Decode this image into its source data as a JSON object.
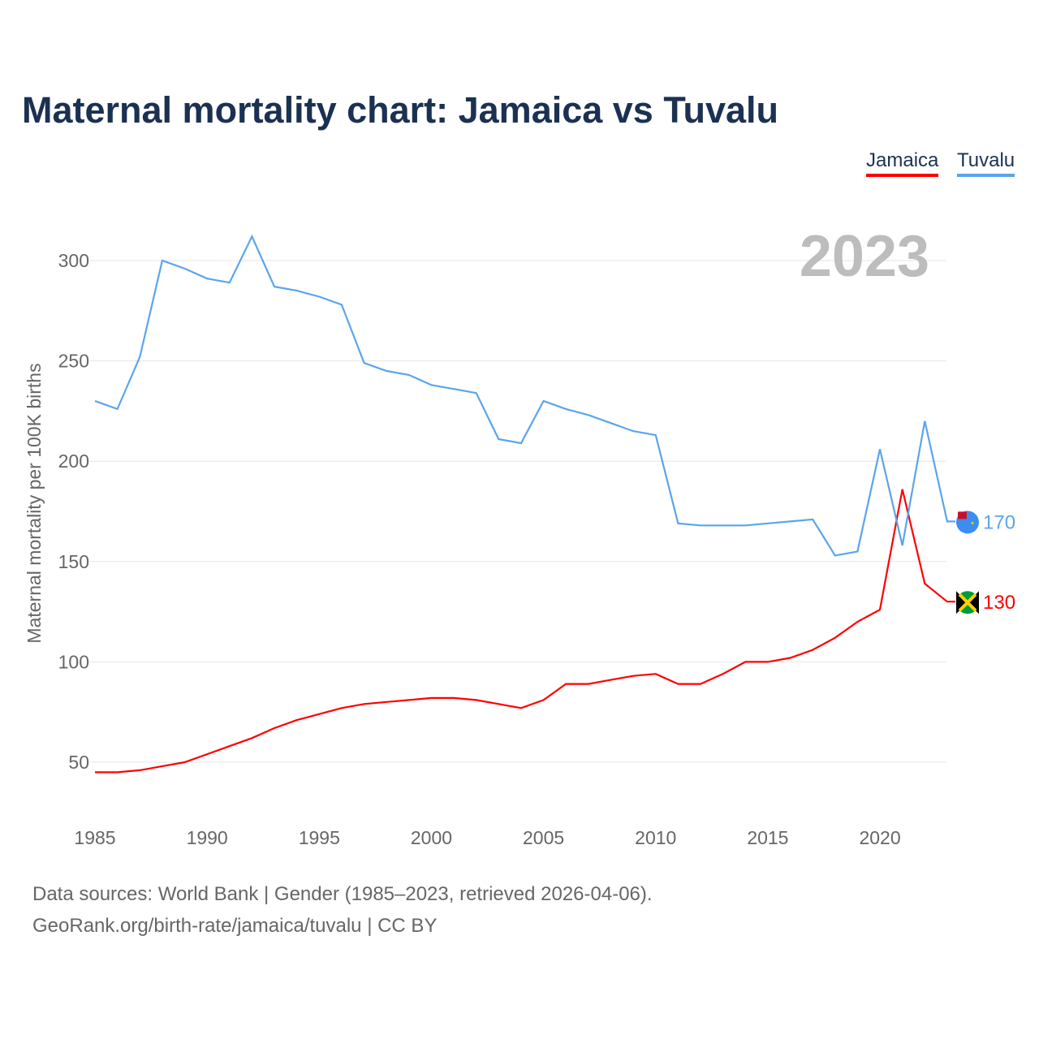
{
  "chart_data": {
    "type": "line",
    "title": "Maternal mortality chart: Jamaica vs Tuvalu",
    "ylabel": "Maternal mortality per 100K births",
    "xlabel": "",
    "year_label": "2023",
    "x": [
      1985,
      1986,
      1987,
      1988,
      1989,
      1990,
      1991,
      1992,
      1993,
      1994,
      1995,
      1996,
      1997,
      1998,
      1999,
      2000,
      2001,
      2002,
      2003,
      2004,
      2005,
      2006,
      2007,
      2008,
      2009,
      2010,
      2011,
      2012,
      2013,
      2014,
      2015,
      2016,
      2017,
      2018,
      2019,
      2020,
      2021,
      2022,
      2023
    ],
    "series": [
      {
        "name": "Jamaica",
        "color": "#ff0000",
        "end_label": "130",
        "values": [
          45,
          45,
          46,
          48,
          50,
          54,
          58,
          62,
          67,
          71,
          74,
          77,
          79,
          80,
          81,
          82,
          82,
          81,
          79,
          77,
          81,
          89,
          89,
          91,
          93,
          94,
          89,
          89,
          94,
          100,
          100,
          102,
          106,
          112,
          120,
          126,
          186,
          139,
          130
        ]
      },
      {
        "name": "Tuvalu",
        "color": "#5aa5ec",
        "end_label": "170",
        "values": [
          230,
          226,
          252,
          300,
          296,
          291,
          289,
          312,
          287,
          285,
          282,
          278,
          249,
          245,
          243,
          238,
          236,
          234,
          211,
          209,
          230,
          226,
          223,
          219,
          215,
          213,
          169,
          168,
          168,
          168,
          169,
          170,
          171,
          153,
          155,
          206,
          158,
          220,
          170
        ]
      }
    ],
    "xticks": [
      1985,
      1990,
      1995,
      2000,
      2005,
      2010,
      2015,
      2020
    ],
    "yticks": [
      50,
      100,
      150,
      200,
      250,
      300
    ],
    "xlim": [
      1985,
      2023
    ],
    "ylim": [
      30,
      330
    ],
    "grid": true,
    "legend": "top-right"
  },
  "footer": {
    "line1": "Data sources: World Bank | Gender (1985–2023, retrieved 2026-04-06).",
    "line2": "GeoRank.org/birth-rate/jamaica/tuvalu | CC BY"
  }
}
